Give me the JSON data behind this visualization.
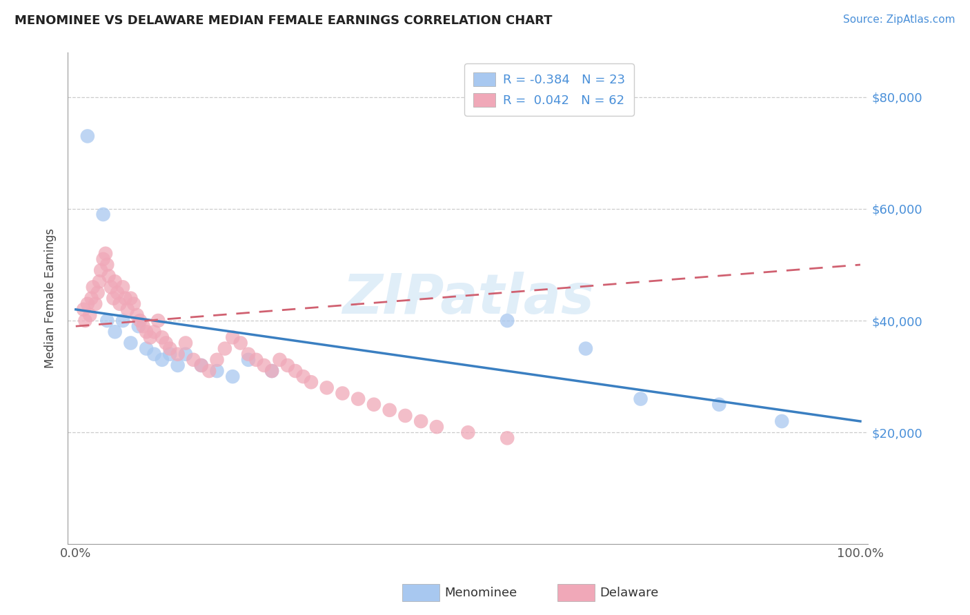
{
  "title": "MENOMINEE VS DELAWARE MEDIAN FEMALE EARNINGS CORRELATION CHART",
  "source_text": "Source: ZipAtlas.com",
  "ylabel": "Median Female Earnings",
  "xlim": [
    -1,
    101
  ],
  "ylim": [
    0,
    88000
  ],
  "yticks": [
    20000,
    40000,
    60000,
    80000
  ],
  "ytick_labels": [
    "$20,000",
    "$40,000",
    "$60,000",
    "$80,000"
  ],
  "xticks": [
    0,
    100
  ],
  "xtick_labels": [
    "0.0%",
    "100.0%"
  ],
  "menominee_color": "#a8c8f0",
  "delaware_color": "#f0a8b8",
  "menominee_line_color": "#3a7fc1",
  "delaware_line_color": "#d06070",
  "yaxis_color": "#4a90d9",
  "R_menominee": -0.384,
  "N_menominee": 23,
  "R_delaware": 0.042,
  "N_delaware": 62,
  "watermark_text": "ZIPatlas",
  "menominee_x": [
    1.5,
    3.5,
    4.0,
    5.0,
    6.0,
    7.0,
    8.0,
    9.0,
    10.0,
    11.0,
    12.0,
    13.0,
    14.0,
    16.0,
    18.0,
    20.0,
    22.0,
    25.0,
    55.0,
    65.0,
    72.0,
    82.0,
    90.0
  ],
  "menominee_y": [
    73000,
    59000,
    40000,
    38000,
    40000,
    36000,
    39000,
    35000,
    34000,
    33000,
    34000,
    32000,
    34000,
    32000,
    31000,
    30000,
    33000,
    31000,
    40000,
    35000,
    26000,
    25000,
    22000
  ],
  "delaware_x": [
    1.0,
    1.2,
    1.5,
    1.8,
    2.0,
    2.2,
    2.5,
    2.8,
    3.0,
    3.2,
    3.5,
    3.8,
    4.0,
    4.2,
    4.5,
    4.8,
    5.0,
    5.3,
    5.6,
    6.0,
    6.3,
    6.6,
    7.0,
    7.4,
    7.8,
    8.2,
    8.6,
    9.0,
    9.5,
    10.0,
    10.5,
    11.0,
    11.5,
    12.0,
    13.0,
    14.0,
    15.0,
    16.0,
    17.0,
    18.0,
    19.0,
    20.0,
    21.0,
    22.0,
    23.0,
    24.0,
    25.0,
    26.0,
    27.0,
    28.0,
    29.0,
    30.0,
    32.0,
    34.0,
    36.0,
    38.0,
    40.0,
    42.0,
    44.0,
    46.0,
    50.0,
    55.0
  ],
  "delaware_y": [
    42000,
    40000,
    43000,
    41000,
    44000,
    46000,
    43000,
    45000,
    47000,
    49000,
    51000,
    52000,
    50000,
    48000,
    46000,
    44000,
    47000,
    45000,
    43000,
    46000,
    44000,
    42000,
    44000,
    43000,
    41000,
    40000,
    39000,
    38000,
    37000,
    38000,
    40000,
    37000,
    36000,
    35000,
    34000,
    36000,
    33000,
    32000,
    31000,
    33000,
    35000,
    37000,
    36000,
    34000,
    33000,
    32000,
    31000,
    33000,
    32000,
    31000,
    30000,
    29000,
    28000,
    27000,
    26000,
    25000,
    24000,
    23000,
    22000,
    21000,
    20000,
    19000
  ]
}
